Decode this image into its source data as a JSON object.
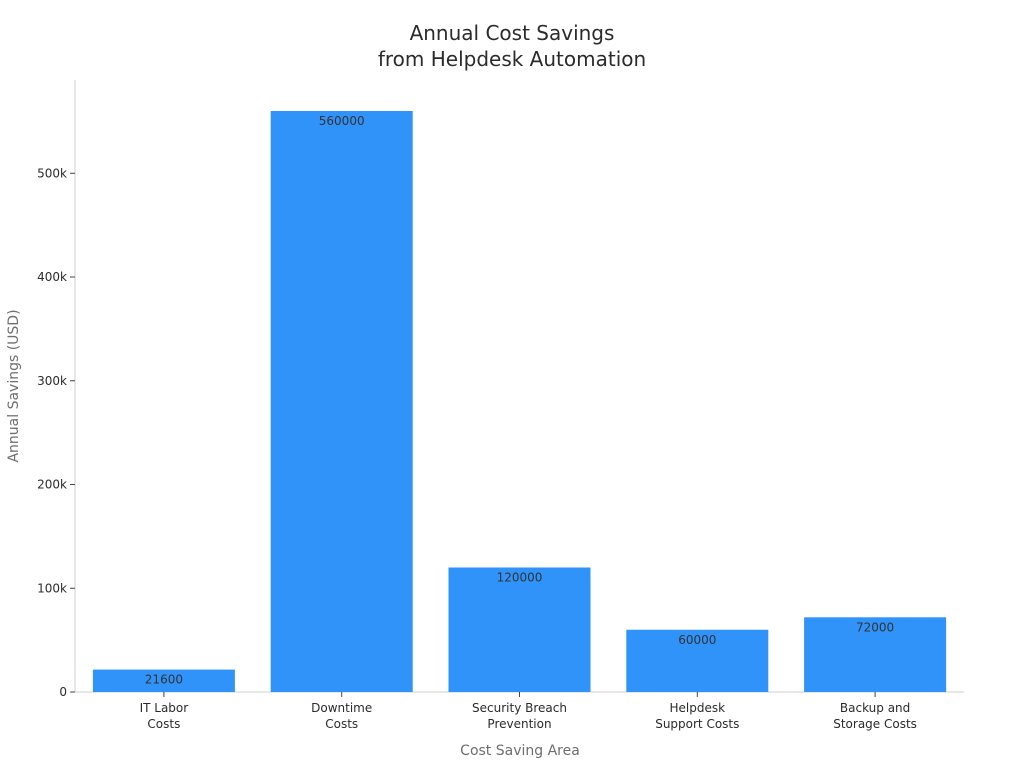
{
  "chart_data": {
    "type": "bar",
    "title": [
      "Annual Cost Savings",
      "from Helpdesk Automation"
    ],
    "xlabel": "Cost Saving Area",
    "ylabel": "Annual Savings (USD)",
    "categories": [
      [
        "IT Labor",
        "Costs"
      ],
      [
        "Downtime",
        "Costs"
      ],
      [
        "Security Breach",
        "Prevention"
      ],
      [
        "Helpdesk",
        "Support Costs"
      ],
      [
        "Backup and",
        "Storage Costs"
      ]
    ],
    "values": [
      21600,
      560000,
      120000,
      60000,
      72000
    ],
    "data_labels": [
      "21600",
      "560000",
      "120000",
      "60000",
      "72000"
    ],
    "yticks": [
      0,
      100000,
      200000,
      300000,
      400000,
      500000
    ],
    "ytick_labels": [
      "0",
      "100k",
      "200k",
      "300k",
      "400k",
      "500k"
    ],
    "ylim": [
      0,
      590000
    ],
    "bar_color": "#2f93fa",
    "grid": false,
    "legend": "none"
  }
}
